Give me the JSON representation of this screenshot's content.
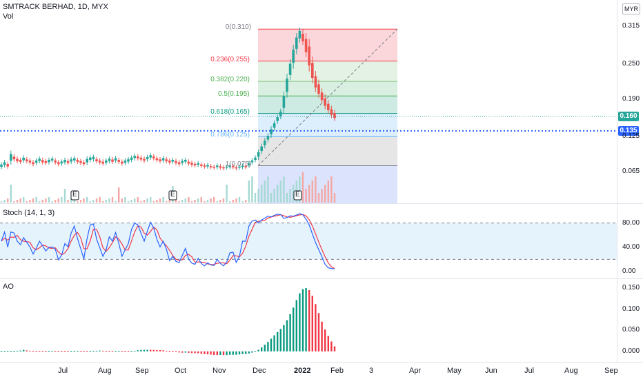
{
  "header": {
    "symbol_line": "SMTRACK BERHAD, 1D, MYX",
    "volume_label": "Vol",
    "currency": "MYR"
  },
  "price_axis": {
    "ticks": [
      {
        "value": 0.315,
        "label": "0.315"
      },
      {
        "value": 0.25,
        "label": "0.250"
      },
      {
        "value": 0.19,
        "label": "0.190"
      },
      {
        "value": 0.125,
        "label": "0.125"
      },
      {
        "value": 0.065,
        "label": "0.065"
      }
    ],
    "last_price": {
      "label": "0.160",
      "value": 0.16,
      "color": "#26a69a"
    },
    "hline_price": {
      "label": "0.135",
      "value": 0.135,
      "color": "#2962ff"
    }
  },
  "fibonacci": {
    "levels": [
      {
        "label": "0(0.310)",
        "value": 0.31,
        "line_color": "#f23645",
        "fill": "#fbd7db"
      },
      {
        "label": "0.236(0.255)",
        "value": 0.255,
        "line_color": "#f23645",
        "label_color": "#f23645",
        "fill": "#e3f2e4"
      },
      {
        "label": "0.382(0.220)",
        "value": 0.22,
        "line_color": "#81c784",
        "label_color": "#4caf50",
        "fill": "#d9efe2"
      },
      {
        "label": "0.5(0.195)",
        "value": 0.195,
        "line_color": "#4caf50",
        "label_color": "#4caf50",
        "fill": "#cdeae3"
      },
      {
        "label": "0.618(0.165)",
        "value": 0.165,
        "line_color": "#089981",
        "label_color": "#089981",
        "fill": "#ddeefd"
      },
      {
        "label": "0.786(0.125)",
        "value": 0.125,
        "line_color": "#64b5f6",
        "label_color": "#64b5f6",
        "fill": "#e6e6e6"
      },
      {
        "label": "1(0.075)",
        "value": 0.075,
        "line_color": "#787b86",
        "label_color": "#787b86",
        "fill": "#dbe4fc"
      }
    ]
  },
  "earnings_markers": [
    "E",
    "E",
    "E"
  ],
  "stoch": {
    "label": "Stoch (14, 1, 3)",
    "upper_band": 80,
    "lower_band": 20,
    "ticks": [
      {
        "value": 80,
        "label": "80.00"
      },
      {
        "value": 40,
        "label": "40.00"
      },
      {
        "value": 0,
        "label": "0.00"
      }
    ],
    "k_color": "#2962ff",
    "d_color": "#f23645"
  },
  "ao": {
    "label": "AO",
    "ticks": [
      {
        "value": 0.15,
        "label": "0.150"
      },
      {
        "value": 0.1,
        "label": "0.100"
      },
      {
        "value": 0.05,
        "label": "0.050"
      },
      {
        "value": 0.0,
        "label": "0.000"
      }
    ],
    "up_color": "#089981",
    "down_color": "#f23645"
  },
  "time_axis": {
    "labels": [
      {
        "label": "Jul",
        "bold": false
      },
      {
        "label": "Aug",
        "bold": false
      },
      {
        "label": "Sep",
        "bold": false
      },
      {
        "label": "Oct",
        "bold": false
      },
      {
        "label": "Nov",
        "bold": false
      },
      {
        "label": "Dec",
        "bold": false
      },
      {
        "label": "2022",
        "bold": true
      },
      {
        "label": "Feb",
        "bold": false
      },
      {
        "label": "3",
        "bold": false
      },
      {
        "label": "Apr",
        "bold": false
      },
      {
        "label": "May",
        "bold": false
      },
      {
        "label": "Jun",
        "bold": false
      },
      {
        "label": "Jul",
        "bold": false
      },
      {
        "label": "Aug",
        "bold": false
      },
      {
        "label": "Sep",
        "bold": false
      }
    ]
  },
  "colors": {
    "up": "#26a69a",
    "down": "#ef5350",
    "grid": "#f0f3fa",
    "axis_text": "#131722"
  },
  "chart_data": {
    "type": "candlestick",
    "title": "SMTRACK BERHAD, 1D, MYX",
    "ylim": [
      0.05,
      0.33
    ],
    "price_path": [
      [
        0.078,
        0.072
      ],
      [
        0.082,
        0.075
      ],
      [
        0.079,
        0.073
      ],
      [
        0.098,
        0.08
      ],
      [
        0.092,
        0.085
      ],
      [
        0.088,
        0.082
      ],
      [
        0.086,
        0.081
      ],
      [
        0.09,
        0.083
      ],
      [
        0.087,
        0.082
      ],
      [
        0.085,
        0.08
      ],
      [
        0.082,
        0.077
      ],
      [
        0.085,
        0.079
      ],
      [
        0.088,
        0.082
      ],
      [
        0.086,
        0.08
      ],
      [
        0.084,
        0.079
      ],
      [
        0.086,
        0.08
      ],
      [
        0.088,
        0.083
      ],
      [
        0.085,
        0.08
      ],
      [
        0.082,
        0.077
      ],
      [
        0.083,
        0.078
      ],
      [
        0.086,
        0.08
      ],
      [
        0.084,
        0.079
      ],
      [
        0.087,
        0.081
      ],
      [
        0.089,
        0.083
      ],
      [
        0.086,
        0.081
      ],
      [
        0.084,
        0.079
      ],
      [
        0.082,
        0.077
      ],
      [
        0.088,
        0.079
      ],
      [
        0.09,
        0.084
      ],
      [
        0.091,
        0.085
      ],
      [
        0.087,
        0.082
      ],
      [
        0.085,
        0.08
      ],
      [
        0.083,
        0.078
      ],
      [
        0.085,
        0.079
      ],
      [
        0.088,
        0.082
      ],
      [
        0.087,
        0.081
      ],
      [
        0.089,
        0.083
      ],
      [
        0.086,
        0.081
      ],
      [
        0.083,
        0.078
      ],
      [
        0.085,
        0.079
      ],
      [
        0.087,
        0.081
      ],
      [
        0.09,
        0.084
      ],
      [
        0.093,
        0.087
      ],
      [
        0.092,
        0.087
      ],
      [
        0.09,
        0.085
      ],
      [
        0.088,
        0.083
      ],
      [
        0.091,
        0.085
      ],
      [
        0.094,
        0.088
      ],
      [
        0.092,
        0.087
      ],
      [
        0.089,
        0.084
      ],
      [
        0.087,
        0.082
      ],
      [
        0.089,
        0.083
      ],
      [
        0.087,
        0.082
      ],
      [
        0.085,
        0.08
      ],
      [
        0.086,
        0.081
      ],
      [
        0.084,
        0.079
      ],
      [
        0.082,
        0.077
      ],
      [
        0.084,
        0.079
      ],
      [
        0.086,
        0.081
      ],
      [
        0.083,
        0.078
      ],
      [
        0.081,
        0.076
      ],
      [
        0.079,
        0.075
      ],
      [
        0.08,
        0.076
      ],
      [
        0.078,
        0.074
      ],
      [
        0.076,
        0.073
      ],
      [
        0.077,
        0.073
      ],
      [
        0.075,
        0.072
      ],
      [
        0.074,
        0.071
      ],
      [
        0.076,
        0.072
      ],
      [
        0.075,
        0.071
      ],
      [
        0.073,
        0.07
      ],
      [
        0.074,
        0.071
      ],
      [
        0.076,
        0.072
      ],
      [
        0.075,
        0.072
      ],
      [
        0.073,
        0.07
      ],
      [
        0.074,
        0.071
      ],
      [
        0.076,
        0.072
      ],
      [
        0.075,
        0.072
      ],
      [
        0.08,
        0.075
      ],
      [
        0.085,
        0.08
      ],
      [
        0.09,
        0.084
      ],
      [
        0.1,
        0.088
      ],
      [
        0.11,
        0.098
      ],
      [
        0.12,
        0.108
      ],
      [
        0.128,
        0.118
      ],
      [
        0.14,
        0.126
      ],
      [
        0.15,
        0.138
      ],
      [
        0.16,
        0.15
      ],
      [
        0.17,
        0.158
      ],
      [
        0.2,
        0.168
      ],
      [
        0.23,
        0.195
      ],
      [
        0.255,
        0.225
      ],
      [
        0.28,
        0.245
      ],
      [
        0.3,
        0.27
      ],
      [
        0.31,
        0.29
      ],
      [
        0.306,
        0.286
      ],
      [
        0.3,
        0.265
      ],
      [
        0.29,
        0.24
      ],
      [
        0.26,
        0.22
      ],
      [
        0.235,
        0.205
      ],
      [
        0.22,
        0.195
      ],
      [
        0.205,
        0.185
      ],
      [
        0.195,
        0.175
      ],
      [
        0.185,
        0.168
      ],
      [
        0.175,
        0.16
      ],
      [
        0.168,
        0.155
      ]
    ]
  }
}
